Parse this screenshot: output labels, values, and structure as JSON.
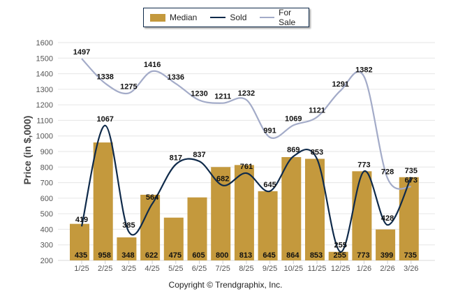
{
  "chart_data": {
    "type": "bar",
    "title": "",
    "xlabel": "",
    "ylabel": "Price (in $,000)",
    "ylim": [
      200,
      1600
    ],
    "ytick_step": 100,
    "grid": true,
    "legend_position": "top-center",
    "categories": [
      "1/25",
      "2/25",
      "3/25",
      "4/25",
      "5/25",
      "6/25",
      "7/25",
      "8/25",
      "9/25",
      "10/25",
      "11/25",
      "12/25",
      "1/26",
      "2/26",
      "3/26"
    ],
    "series": [
      {
        "name": "Median",
        "kind": "bar",
        "color": "#C4993D",
        "values": [
          435,
          958,
          348,
          622,
          475,
          605,
          800,
          813,
          645,
          864,
          853,
          255,
          773,
          399,
          735
        ]
      },
      {
        "name": "Sold",
        "kind": "line",
        "color": "#0F2A4A",
        "values": [
          419,
          1067,
          385,
          564,
          817,
          837,
          682,
          761,
          645,
          869,
          853,
          255,
          773,
          428,
          735
        ]
      },
      {
        "name": "For Sale",
        "kind": "line",
        "color": "#A3ABC8",
        "values": [
          1497,
          1338,
          1275,
          1416,
          1336,
          1230,
          1211,
          1232,
          991,
          1069,
          1121,
          1291,
          1382,
          728,
          673
        ]
      }
    ]
  },
  "legend": {
    "items": [
      {
        "label": "Median",
        "color": "#C4993D"
      },
      {
        "label": "Sold",
        "color": "#0F2A4A"
      },
      {
        "label": "For Sale",
        "color": "#A3ABC8"
      }
    ]
  },
  "footer": {
    "copyright": "Copyright © Trendgraphix, Inc."
  }
}
